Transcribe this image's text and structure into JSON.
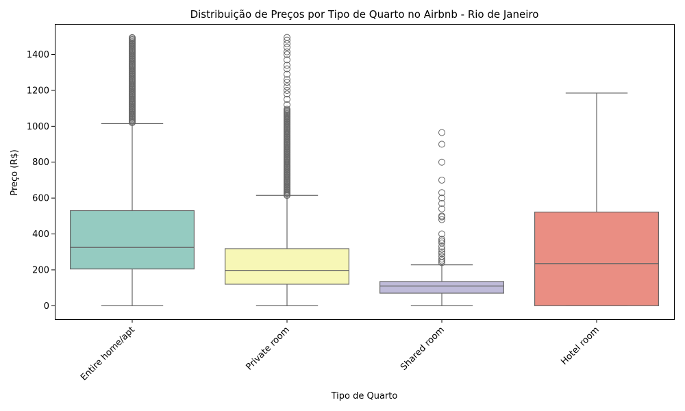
{
  "chart_data": {
    "type": "box",
    "title": "Distribuição de Preços por Tipo de Quarto no Airbnb - Rio de Janeiro",
    "xlabel": "Tipo de Quarto",
    "ylabel": "Preço (R$)",
    "ylim": [
      -75,
      1570
    ],
    "yticks": [
      0,
      200,
      400,
      600,
      800,
      1000,
      1200,
      1400
    ],
    "grid": false,
    "categories": [
      "Entire home/apt",
      "Private room",
      "Shared room",
      "Hotel room"
    ],
    "boxes": [
      {
        "category": "Entire home/apt",
        "color": "#95cbc1",
        "whisker_low": 0,
        "q1": 205,
        "median": 325,
        "q3": 530,
        "whisker_high": 1015,
        "outliers_dense_range": [
          1020,
          1495
        ],
        "outliers": []
      },
      {
        "category": "Private room",
        "color": "#f7f7b6",
        "whisker_low": 0,
        "q1": 120,
        "median": 197,
        "q3": 318,
        "whisker_high": 615,
        "outliers_dense_range": [
          615,
          1100
        ],
        "outliers": [
          1120,
          1150,
          1180,
          1200,
          1220,
          1245,
          1260,
          1290,
          1320,
          1340,
          1370,
          1400,
          1415,
          1440,
          1460,
          1480,
          1495
        ]
      },
      {
        "category": "Shared room",
        "color": "#bfbbd9",
        "whisker_low": 0,
        "q1": 70,
        "median": 110,
        "q3": 135,
        "whisker_high": 228,
        "outliers_dense_range": [],
        "outliers": [
          240,
          250,
          260,
          275,
          290,
          300,
          315,
          330,
          350,
          360,
          370,
          400,
          480,
          495,
          500,
          540,
          570,
          600,
          630,
          700,
          800,
          900,
          965
        ]
      },
      {
        "category": "Hotel room",
        "color": "#ea8e83",
        "whisker_low": 0,
        "q1": 0,
        "median": 235,
        "q3": 522,
        "whisker_high": 1185,
        "outliers_dense_range": [],
        "outliers": []
      }
    ]
  }
}
